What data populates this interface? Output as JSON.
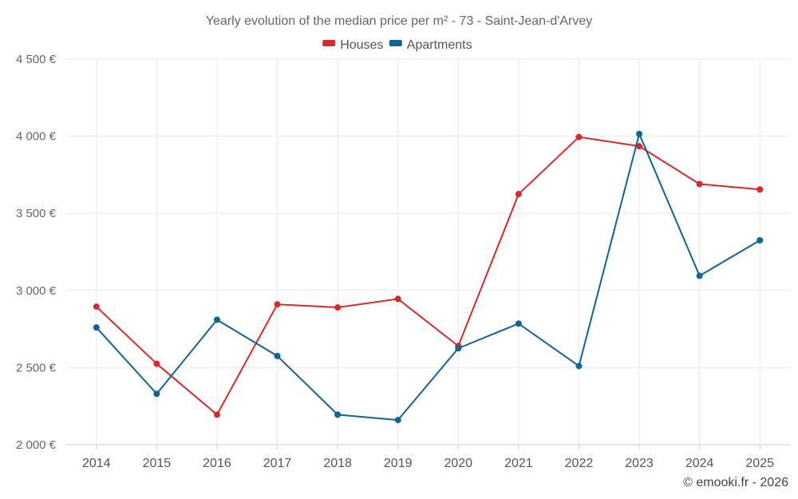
{
  "chart_data": {
    "type": "line",
    "title": "Yearly evolution of the median price per m² - 73 - Saint-Jean-d'Arvey",
    "categories": [
      "2014",
      "2015",
      "2016",
      "2017",
      "2018",
      "2019",
      "2020",
      "2021",
      "2022",
      "2023",
      "2024",
      "2025"
    ],
    "series": [
      {
        "name": "Houses",
        "color": "#d62a2a",
        "values": [
          2895,
          2525,
          2195,
          2910,
          2890,
          2945,
          2640,
          3625,
          3995,
          3935,
          3690,
          3655
        ]
      },
      {
        "name": "Apartments",
        "color": "#0e6496",
        "values": [
          2760,
          2330,
          2810,
          2575,
          2195,
          2160,
          2625,
          2785,
          2510,
          4015,
          3095,
          3325
        ]
      }
    ],
    "ylim": [
      2000,
      4500
    ],
    "yticks": [
      2000,
      2500,
      3000,
      3500,
      4000,
      4500
    ],
    "ytick_labels": [
      "2 000 €",
      "2 500 €",
      "3 000 €",
      "3 500 €",
      "4 000 €",
      "4 500 €"
    ],
    "xlabel": "",
    "ylabel": "",
    "grid": true,
    "legend_position": "top-center"
  },
  "credit": "© emooki.fr - 2026"
}
